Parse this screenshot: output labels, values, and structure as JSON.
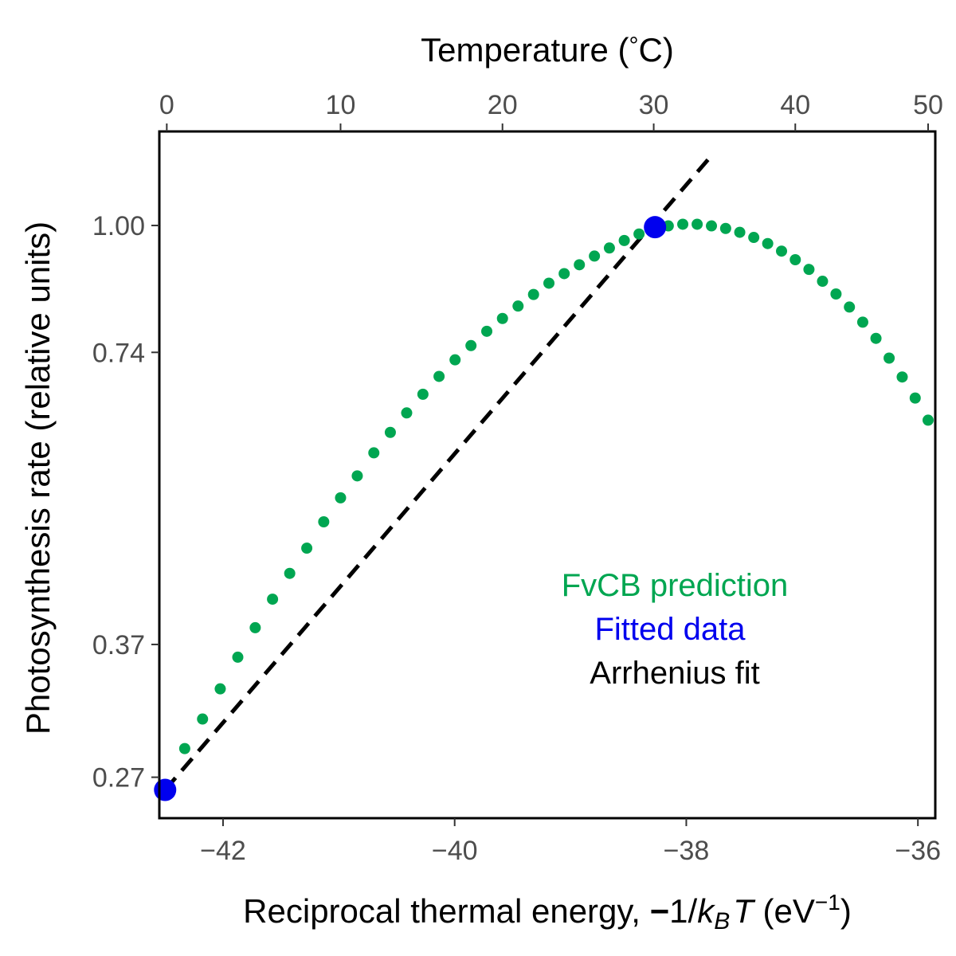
{
  "chart_data": {
    "type": "scatter",
    "x_bottom": {
      "label_prefix": "Reciprocal thermal energy, ",
      "label_minus": "−",
      "label_one_over": "1/",
      "label_k": "k",
      "label_sub": "B",
      "label_T": "T",
      "label_unit_open": " (eV",
      "label_unit_sup": "−1",
      "label_unit_close": ")",
      "range": [
        -42.55,
        -35.85
      ],
      "ticks": [
        -42,
        -40,
        -38,
        -36
      ],
      "tick_labels": [
        "−42",
        "−40",
        "−38",
        "−36"
      ]
    },
    "x_top": {
      "label_text": "Temperature (",
      "label_degree": "°",
      "label_unit": "C)",
      "ticks": [
        0,
        10,
        20,
        30,
        40,
        50
      ],
      "tick_labels": [
        "0",
        "10",
        "20",
        "30",
        "40",
        "50"
      ]
    },
    "y": {
      "label": "Photosynthesis rate (relative units)",
      "scale": "log",
      "range": [
        0.245,
        1.25
      ],
      "ticks": [
        0.27,
        0.37,
        0.74,
        1.0
      ],
      "tick_labels": [
        "0.27",
        "0.37",
        "0.74",
        "1.00"
      ]
    },
    "series": [
      {
        "name": "FvCB prediction",
        "color": "#00a651",
        "kind": "points",
        "temperatures_c": [
          1,
          2,
          3,
          4,
          5,
          6,
          7,
          8,
          9,
          10,
          11,
          12,
          13,
          14,
          15,
          16,
          17,
          18,
          19,
          20,
          21,
          22,
          23,
          24,
          25,
          26,
          27,
          28,
          29,
          30,
          31,
          32,
          33,
          34,
          35,
          36,
          37,
          38,
          39,
          40,
          41,
          42,
          43,
          44,
          45,
          46,
          47,
          48,
          49,
          50
        ],
        "values": [
          0.289,
          0.31,
          0.333,
          0.359,
          0.385,
          0.412,
          0.438,
          0.465,
          0.495,
          0.524,
          0.552,
          0.583,
          0.612,
          0.641,
          0.67,
          0.699,
          0.727,
          0.752,
          0.778,
          0.802,
          0.826,
          0.849,
          0.872,
          0.892,
          0.911,
          0.93,
          0.948,
          0.965,
          0.98,
          0.991,
          0.999,
          1.003,
          1.003,
          0.999,
          0.993,
          0.984,
          0.972,
          0.958,
          0.941,
          0.922,
          0.901,
          0.876,
          0.85,
          0.824,
          0.795,
          0.765,
          0.73,
          0.698,
          0.664,
          0.63
        ]
      },
      {
        "name": "Fitted data",
        "color": "#0000ee",
        "kind": "points",
        "points": [
          {
            "x": -42.5,
            "y": 0.262
          },
          {
            "x": -38.27,
            "y": 0.996
          }
        ]
      },
      {
        "name": "Arrhenius fit",
        "color": "#000000",
        "kind": "dashed-line",
        "points": [
          {
            "x": -42.5,
            "y": 0.262
          },
          {
            "x": -37.81,
            "y": 1.17
          }
        ]
      }
    ],
    "legend_position": "bottom-right"
  }
}
